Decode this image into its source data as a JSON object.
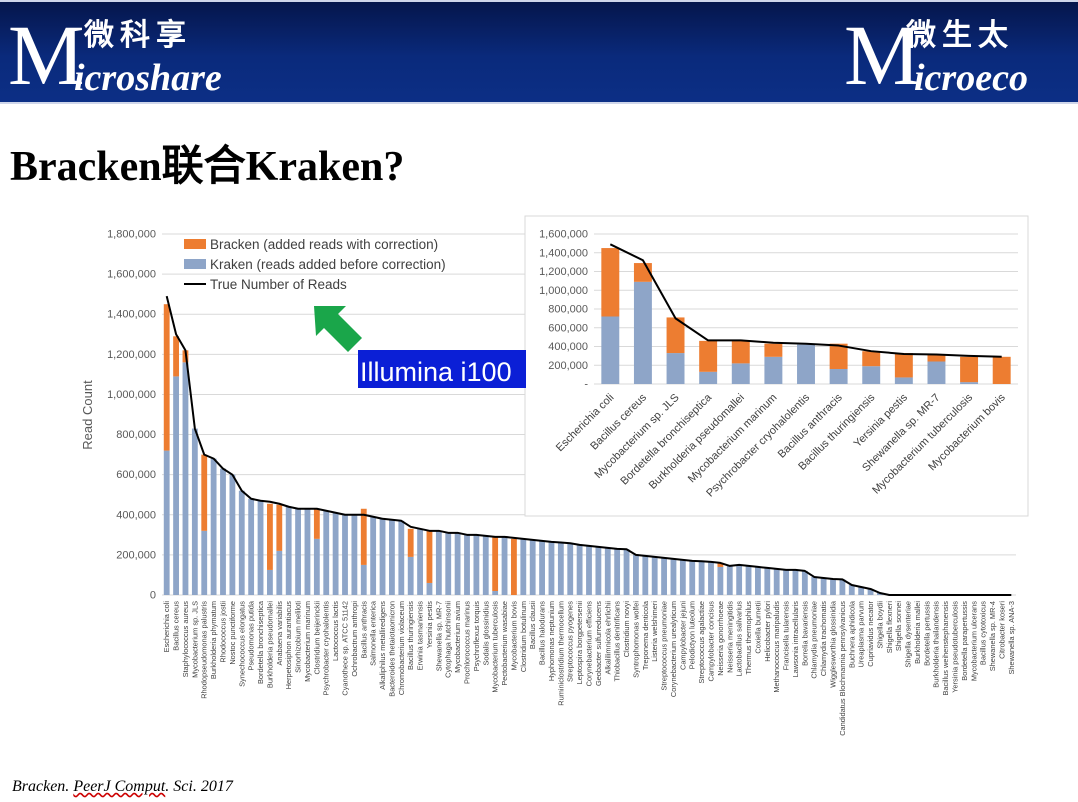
{
  "header": {
    "left_logo": {
      "chinese": "微科享",
      "big_letter": "M",
      "rest": "icroshare"
    },
    "right_logo": {
      "chinese": "微生太",
      "big_letter": "M",
      "rest": "icroeco"
    }
  },
  "slide_title": "Bracken联合Kraken?",
  "annotation": {
    "label": "Illumina i100",
    "arrow_color": "#1aa64a",
    "label_bg": "#0b1fd6"
  },
  "citation": {
    "prefix": "Bracken. ",
    "underlined": "PeerJ Comput",
    "suffix": ". Sci. 2017"
  },
  "colors": {
    "bracken": "#ed7d31",
    "kraken": "#8ea5c8",
    "truth": "#000000"
  },
  "chart_data": [
    {
      "type": "bar",
      "stacked": true,
      "ylabel": "Read Count",
      "ylim": [
        0,
        1800000
      ],
      "yticks": [
        0,
        200000,
        400000,
        600000,
        800000,
        1000000,
        1200000,
        1400000,
        1600000,
        1800000
      ],
      "ytick_labels": [
        "0",
        "200,000",
        "400,000",
        "600,000",
        "800,000",
        "1,000,000",
        "1,200,000",
        "1,400,000",
        "1,600,000",
        "1,800,000"
      ],
      "grid": true,
      "legend_position": "top-left",
      "legend": [
        "Bracken (added reads with correction)",
        "Kraken (reads added before correction)",
        "True Number of Reads"
      ],
      "categories": [
        "Escherichia coli",
        "Bacillus cereus",
        "Staphylococcus aureus",
        "Mycobacterium sp. JLS",
        "Rhodopseudomonas palustris",
        "Burkholderia phymatum",
        "Rhodococcus jostii",
        "Nostoc punctiforme",
        "Synechococcus elongatus",
        "Pseudomonas putida",
        "Bordetella bronchiseptica",
        "Burkholderia pseudomallei",
        "Anabaena variabilis",
        "Herpetosiphon aurantiacus",
        "Sinorhizobium meliloti",
        "Mycobacterium marinum",
        "Clostridium beijerinckii",
        "Psychrobacter cryohalolentis",
        "Lactococcus lactis",
        "Cyanothece sp. ATCC 51142",
        "Ochrobactrum anthropi",
        "Bacillus anthracis",
        "Salmonella enterica",
        "Alkaliphilus metalliredigens",
        "Bacteroides thetaiotaomicron",
        "Chromobacterium violaceum",
        "Bacillus thuringiensis",
        "Erwinia tasmaniensis",
        "Yersinia pestis",
        "Shewanella sp. MR-7",
        "Cytophaga hutchinsonii",
        "Mycobacterium avium",
        "Prochlorococcus marinus",
        "Psychroflexus torquis",
        "Sodalis glossinidius",
        "Mycobacterium tuberculosis",
        "Pectobacterium wasabiae",
        "Mycobacterium bovis",
        "Clostridium botulinum",
        "Bacillus clausii",
        "Bacillus halodurans",
        "Hyphomonas neptunium",
        "Ruminiclostridium thermocellum",
        "Streptococcus pyogenes",
        "Leptospira borgpetersenii",
        "Corynebacterium efficiens",
        "Geobacter sulfurreducens",
        "Alkalilimnicola ehrlichii",
        "Thiobacillus denitrificans",
        "Clostridium novyi",
        "Syntrophomonas wolfei",
        "Treponema denticola",
        "Listeria welshimeri",
        "Streptococcus pneumoniae",
        "Corynebacterium urealyticum",
        "Campylobacter jejuni",
        "Pelodictyon luteolum",
        "Streptococcus agalactiae",
        "Campylobacter concisus",
        "Neisseria gonorrhoeae",
        "Neisseria meningitidis",
        "Lactobacillus salivarius",
        "Thermus thermophilus",
        "Coxiella burnetii",
        "Helicobacter pylori",
        "Methanococcus maripaludis",
        "Francisella tularensis",
        "Lawsonia intracellularis",
        "Borrelia bavariensis",
        "Chlamydia pneumoniae",
        "Chlamydia trachomatis",
        "Wigglesworthia glossinidia",
        "Candidatus Blochmannia pennsylvanicus",
        "Buchnera aphidicola",
        "Ureaplasma parvum",
        "Cupriavidus necator",
        "Shigella boydii",
        "Shigella flexneri",
        "Shigella sonnei",
        "Shigella dysenteriae",
        "Burkholderia mallei",
        "Bordetella pertussis",
        "Burkholderia thailandensis",
        "Bacillus weihenstephanensis",
        "Yersinia pseudotuberculosis",
        "Bordetella parapertussis",
        "Mycobacterium ulcerans",
        "Bacillus cytotoxicus",
        "Shewanella sp. MR-4",
        "Citrobacter koseri",
        "Shewanella sp. ANA-3"
      ],
      "series": [
        {
          "name": "Kraken (reads added before correction)",
          "values": [
            720000,
            1090000,
            1160000,
            830000,
            320000,
            680000,
            630000,
            600000,
            520000,
            480000,
            470000,
            125000,
            220000,
            440000,
            430000,
            430000,
            280000,
            420000,
            410000,
            400000,
            400000,
            150000,
            390000,
            380000,
            375000,
            370000,
            190000,
            330000,
            60000,
            320000,
            310000,
            310000,
            300000,
            300000,
            295000,
            20000,
            290000,
            0,
            280000,
            275000,
            270000,
            265000,
            262000,
            258000,
            250000,
            245000,
            240000,
            235000,
            230000,
            228000,
            200000,
            195000,
            190000,
            185000,
            180000,
            175000,
            170000,
            168000,
            165000,
            140000,
            145000,
            150000,
            145000,
            140000,
            135000,
            130000,
            125000,
            125000,
            120000,
            90000,
            85000,
            80000,
            78000,
            50000,
            40000,
            30000,
            10000,
            0,
            0,
            0,
            0,
            0,
            0,
            0,
            0,
            0,
            0,
            0,
            0,
            0,
            0
          ]
        },
        {
          "name": "Bracken (added reads with correction)",
          "values": [
            730000,
            200000,
            60000,
            0,
            380000,
            0,
            0,
            0,
            0,
            0,
            0,
            330000,
            230000,
            0,
            0,
            0,
            150000,
            0,
            0,
            0,
            0,
            280000,
            0,
            0,
            0,
            0,
            140000,
            0,
            260000,
            0,
            0,
            0,
            0,
            0,
            0,
            270000,
            0,
            280000,
            0,
            0,
            0,
            0,
            0,
            0,
            0,
            0,
            0,
            0,
            0,
            0,
            0,
            0,
            0,
            0,
            0,
            0,
            0,
            0,
            0,
            20000,
            0,
            0,
            0,
            0,
            0,
            0,
            0,
            0,
            0,
            0,
            0,
            0,
            0,
            0,
            0,
            0,
            0,
            0,
            0,
            0,
            0,
            0,
            0,
            0,
            0,
            0,
            0,
            0,
            0,
            0,
            0
          ]
        },
        {
          "name": "True Number of Reads",
          "type": "line",
          "values": [
            1490000,
            1300000,
            1220000,
            830000,
            700000,
            680000,
            630000,
            600000,
            520000,
            480000,
            470000,
            465000,
            455000,
            440000,
            430000,
            430000,
            430000,
            420000,
            410000,
            400000,
            400000,
            400000,
            390000,
            380000,
            375000,
            370000,
            340000,
            330000,
            320000,
            320000,
            310000,
            310000,
            300000,
            300000,
            295000,
            290000,
            290000,
            285000,
            280000,
            275000,
            270000,
            265000,
            262000,
            258000,
            250000,
            245000,
            240000,
            235000,
            230000,
            228000,
            200000,
            195000,
            190000,
            185000,
            180000,
            175000,
            170000,
            168000,
            165000,
            160000,
            145000,
            150000,
            145000,
            140000,
            135000,
            130000,
            125000,
            125000,
            120000,
            90000,
            85000,
            80000,
            78000,
            50000,
            40000,
            30000,
            10000,
            0,
            0,
            0,
            0,
            0,
            0,
            0,
            0,
            0,
            0,
            0,
            0,
            0,
            0
          ]
        }
      ]
    },
    {
      "type": "bar",
      "stacked": true,
      "ylim": [
        0,
        1600000
      ],
      "yticks": [
        0,
        200000,
        400000,
        600000,
        800000,
        1000000,
        1200000,
        1400000,
        1600000
      ],
      "ytick_labels": [
        "-",
        "200,000",
        "400,000",
        "600,000",
        "800,000",
        "1,000,000",
        "1,200,000",
        "1,400,000",
        "1,600,000"
      ],
      "grid": true,
      "categories": [
        "Escherichia coli",
        "Bacillus cereus",
        "Mycobacterium sp. JLS",
        "Bordetella bronchiseptica",
        "Burkholderia pseudomallei",
        "Mycobacterium marinum",
        "Psychrobacter cryohalolentis",
        "Bacillus anthracis",
        "Bacillus thuringiensis",
        "Yersinia pestis",
        "Shewanella sp. MR-7",
        "Mycobacterium tuberculosis",
        "Mycobacterium bovis"
      ],
      "series": [
        {
          "name": "Kraken (reads added before correction)",
          "values": [
            720000,
            1090000,
            330000,
            130000,
            220000,
            290000,
            420000,
            160000,
            190000,
            70000,
            240000,
            20000,
            0
          ]
        },
        {
          "name": "Bracken (added reads with correction)",
          "values": [
            730000,
            200000,
            380000,
            330000,
            240000,
            140000,
            0,
            270000,
            160000,
            260000,
            70000,
            270000,
            290000
          ]
        },
        {
          "name": "True Number of Reads",
          "type": "line",
          "values": [
            1490000,
            1320000,
            700000,
            465000,
            465000,
            440000,
            430000,
            410000,
            350000,
            320000,
            315000,
            300000,
            290000
          ]
        }
      ]
    }
  ]
}
